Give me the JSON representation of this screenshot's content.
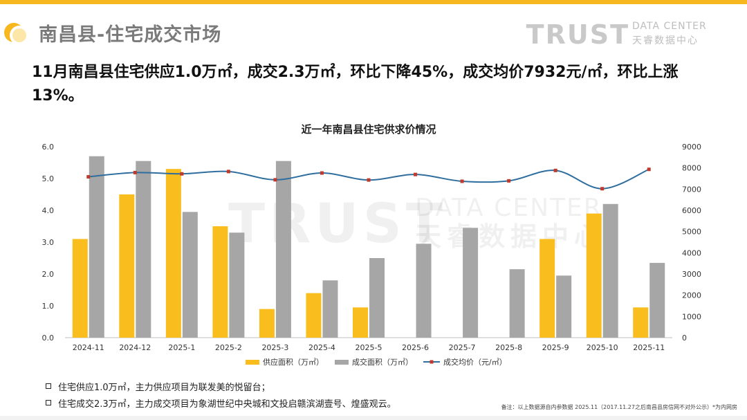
{
  "header": {
    "title": "南昌县-住宅成交市场",
    "brand_main": "TRUST",
    "brand_sub_en": "DATA CENTER",
    "brand_sub_cn": "天睿数据中心"
  },
  "headline": "11月南昌县住宅供应1.0万㎡，成交2.3万㎡，环比下降45%，成交均价7932元/㎡，环比上涨13%。",
  "colors": {
    "accent": "#f7b81f",
    "supply_bar": "#f9bd1e",
    "deal_bar": "#a6a6a6",
    "price_line": "#2e6e9e",
    "price_marker": "#c0392b"
  },
  "chart_data": {
    "type": "bar",
    "title": "近一年南昌县住宅供求价情况",
    "categories": [
      "2024-11",
      "2024-12",
      "2025-1",
      "2025-2",
      "2025-3",
      "2025-4",
      "2025-5",
      "2025-6",
      "2025-7",
      "2025-8",
      "2025-9",
      "2025-10",
      "2025-11"
    ],
    "series": [
      {
        "name": "供应面积（万㎡）",
        "type": "bar",
        "axis": "left",
        "values": [
          3.1,
          4.5,
          5.3,
          3.5,
          0.9,
          1.4,
          0.95,
          0,
          0,
          0,
          3.1,
          3.9,
          0.95
        ]
      },
      {
        "name": "成交面积（万㎡）",
        "type": "bar",
        "axis": "left",
        "values": [
          5.7,
          5.55,
          3.95,
          3.3,
          5.55,
          1.8,
          2.5,
          2.95,
          3.45,
          2.15,
          1.95,
          4.2,
          2.35
        ]
      },
      {
        "name": "成交均价（元/㎡）",
        "type": "line",
        "axis": "right",
        "values": [
          7580,
          7780,
          7720,
          7830,
          7440,
          7760,
          7430,
          7690,
          7370,
          7390,
          7880,
          7020,
          7932
        ]
      }
    ],
    "y_left": {
      "min": 0,
      "max": 6,
      "ticks": [
        "0.0",
        "1.0",
        "2.0",
        "3.0",
        "4.0",
        "5.0",
        "6.0"
      ]
    },
    "y_right": {
      "min": 0,
      "max": 9000,
      "ticks": [
        "0",
        "1000",
        "2000",
        "3000",
        "4000",
        "5000",
        "6000",
        "7000",
        "8000",
        "9000"
      ]
    },
    "watermark": {
      "main": "TRUST",
      "en": "DATA CENTER",
      "cn": "天睿数据中心"
    },
    "legend_position": "bottom",
    "grid": false
  },
  "notes": [
    "住宅供应1.0万㎡，主力供应项目为联发美的悦留台；",
    "住宅成交2.3万㎡，主力成交项目为象湖世纪中央城和文投启赣滨湖壹号、煌盛观云。"
  ],
  "footnote": "备注：以上数据源自内参数据 2025.11（2017.11.27之后南昌县房信网不对外公示）*为内网房"
}
